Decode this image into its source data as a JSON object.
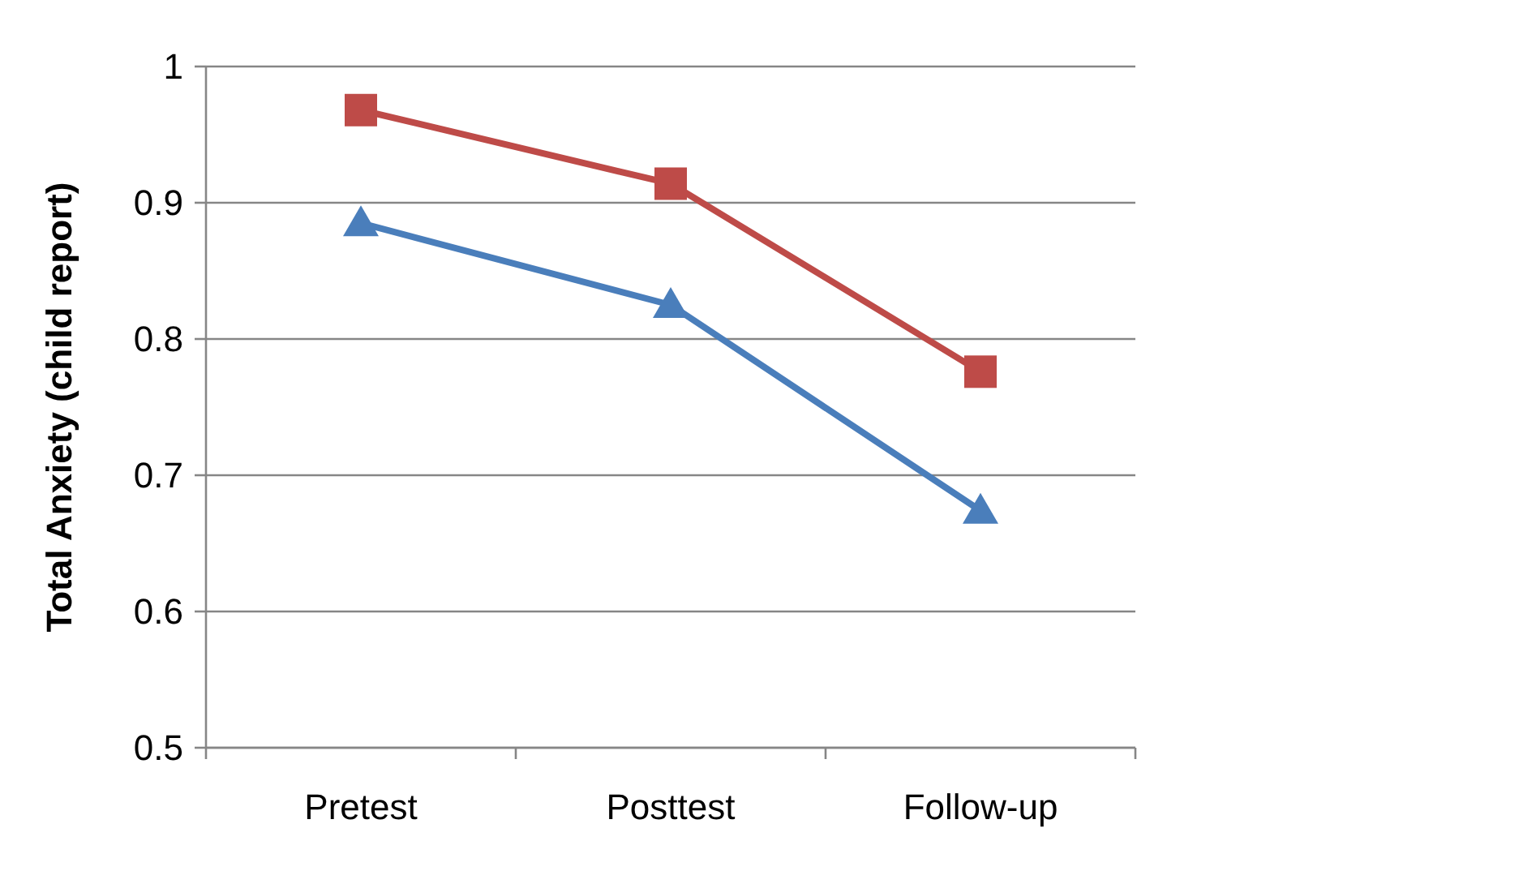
{
  "chart_data": {
    "type": "line",
    "ylabel": "Total Anxiety (child report)",
    "categories": [
      "Pretest",
      "Posttest",
      "Follow-up"
    ],
    "series": [
      {
        "color": "#4a7ebb",
        "values": [
          0.885,
          0.825,
          0.674
        ],
        "marker": "triangle"
      },
      {
        "color": "#be4b48",
        "values": [
          0.968,
          0.914,
          0.776
        ],
        "marker": "square"
      }
    ],
    "ylim": [
      0.5,
      1
    ],
    "yticks": [
      0.5,
      0.6,
      0.7,
      0.8,
      0.9,
      1
    ],
    "grid": "y"
  }
}
